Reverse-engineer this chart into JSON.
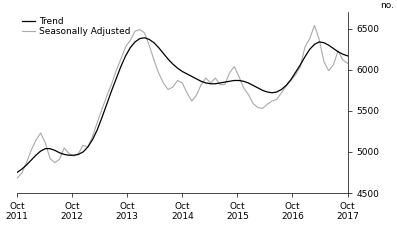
{
  "title": "",
  "ylabel_right": "no.",
  "ylim": [
    4500,
    6700
  ],
  "yticks": [
    4500,
    5000,
    5500,
    6000,
    6500
  ],
  "xtick_labels": [
    "Oct\n2011",
    "Oct\n2012",
    "Oct\n2013",
    "Oct\n2014",
    "Oct\n2015",
    "Oct\n2016",
    "Oct\n2017"
  ],
  "legend_entries": [
    "Trend",
    "Seasonally Adjusted"
  ],
  "trend_color": "#000000",
  "seasonal_color": "#aaaaaa",
  "background_color": "#ffffff",
  "trend_data": [
    4750,
    4790,
    4840,
    4900,
    4960,
    5010,
    5040,
    5040,
    5020,
    4990,
    4970,
    4960,
    4960,
    4970,
    5000,
    5060,
    5150,
    5270,
    5420,
    5580,
    5740,
    5890,
    6040,
    6170,
    6270,
    6340,
    6380,
    6390,
    6370,
    6330,
    6270,
    6200,
    6130,
    6070,
    6020,
    5980,
    5950,
    5920,
    5890,
    5860,
    5840,
    5830,
    5830,
    5840,
    5850,
    5860,
    5870,
    5870,
    5860,
    5840,
    5810,
    5780,
    5750,
    5730,
    5720,
    5730,
    5760,
    5810,
    5880,
    5970,
    6060,
    6160,
    6250,
    6310,
    6340,
    6330,
    6300,
    6260,
    6220,
    6190,
    6170
  ],
  "seasonal_data": [
    4680,
    4740,
    4870,
    5020,
    5140,
    5230,
    5110,
    4920,
    4870,
    4910,
    5050,
    4980,
    4950,
    4980,
    5080,
    5060,
    5190,
    5360,
    5520,
    5680,
    5820,
    5990,
    6130,
    6280,
    6360,
    6470,
    6490,
    6450,
    6300,
    6120,
    5960,
    5840,
    5760,
    5790,
    5870,
    5840,
    5720,
    5620,
    5690,
    5820,
    5900,
    5840,
    5900,
    5820,
    5820,
    5960,
    6040,
    5920,
    5780,
    5700,
    5590,
    5540,
    5530,
    5580,
    5620,
    5640,
    5720,
    5800,
    5870,
    5940,
    6040,
    6280,
    6380,
    6540,
    6370,
    6100,
    5990,
    6060,
    6230,
    6120,
    6080
  ]
}
